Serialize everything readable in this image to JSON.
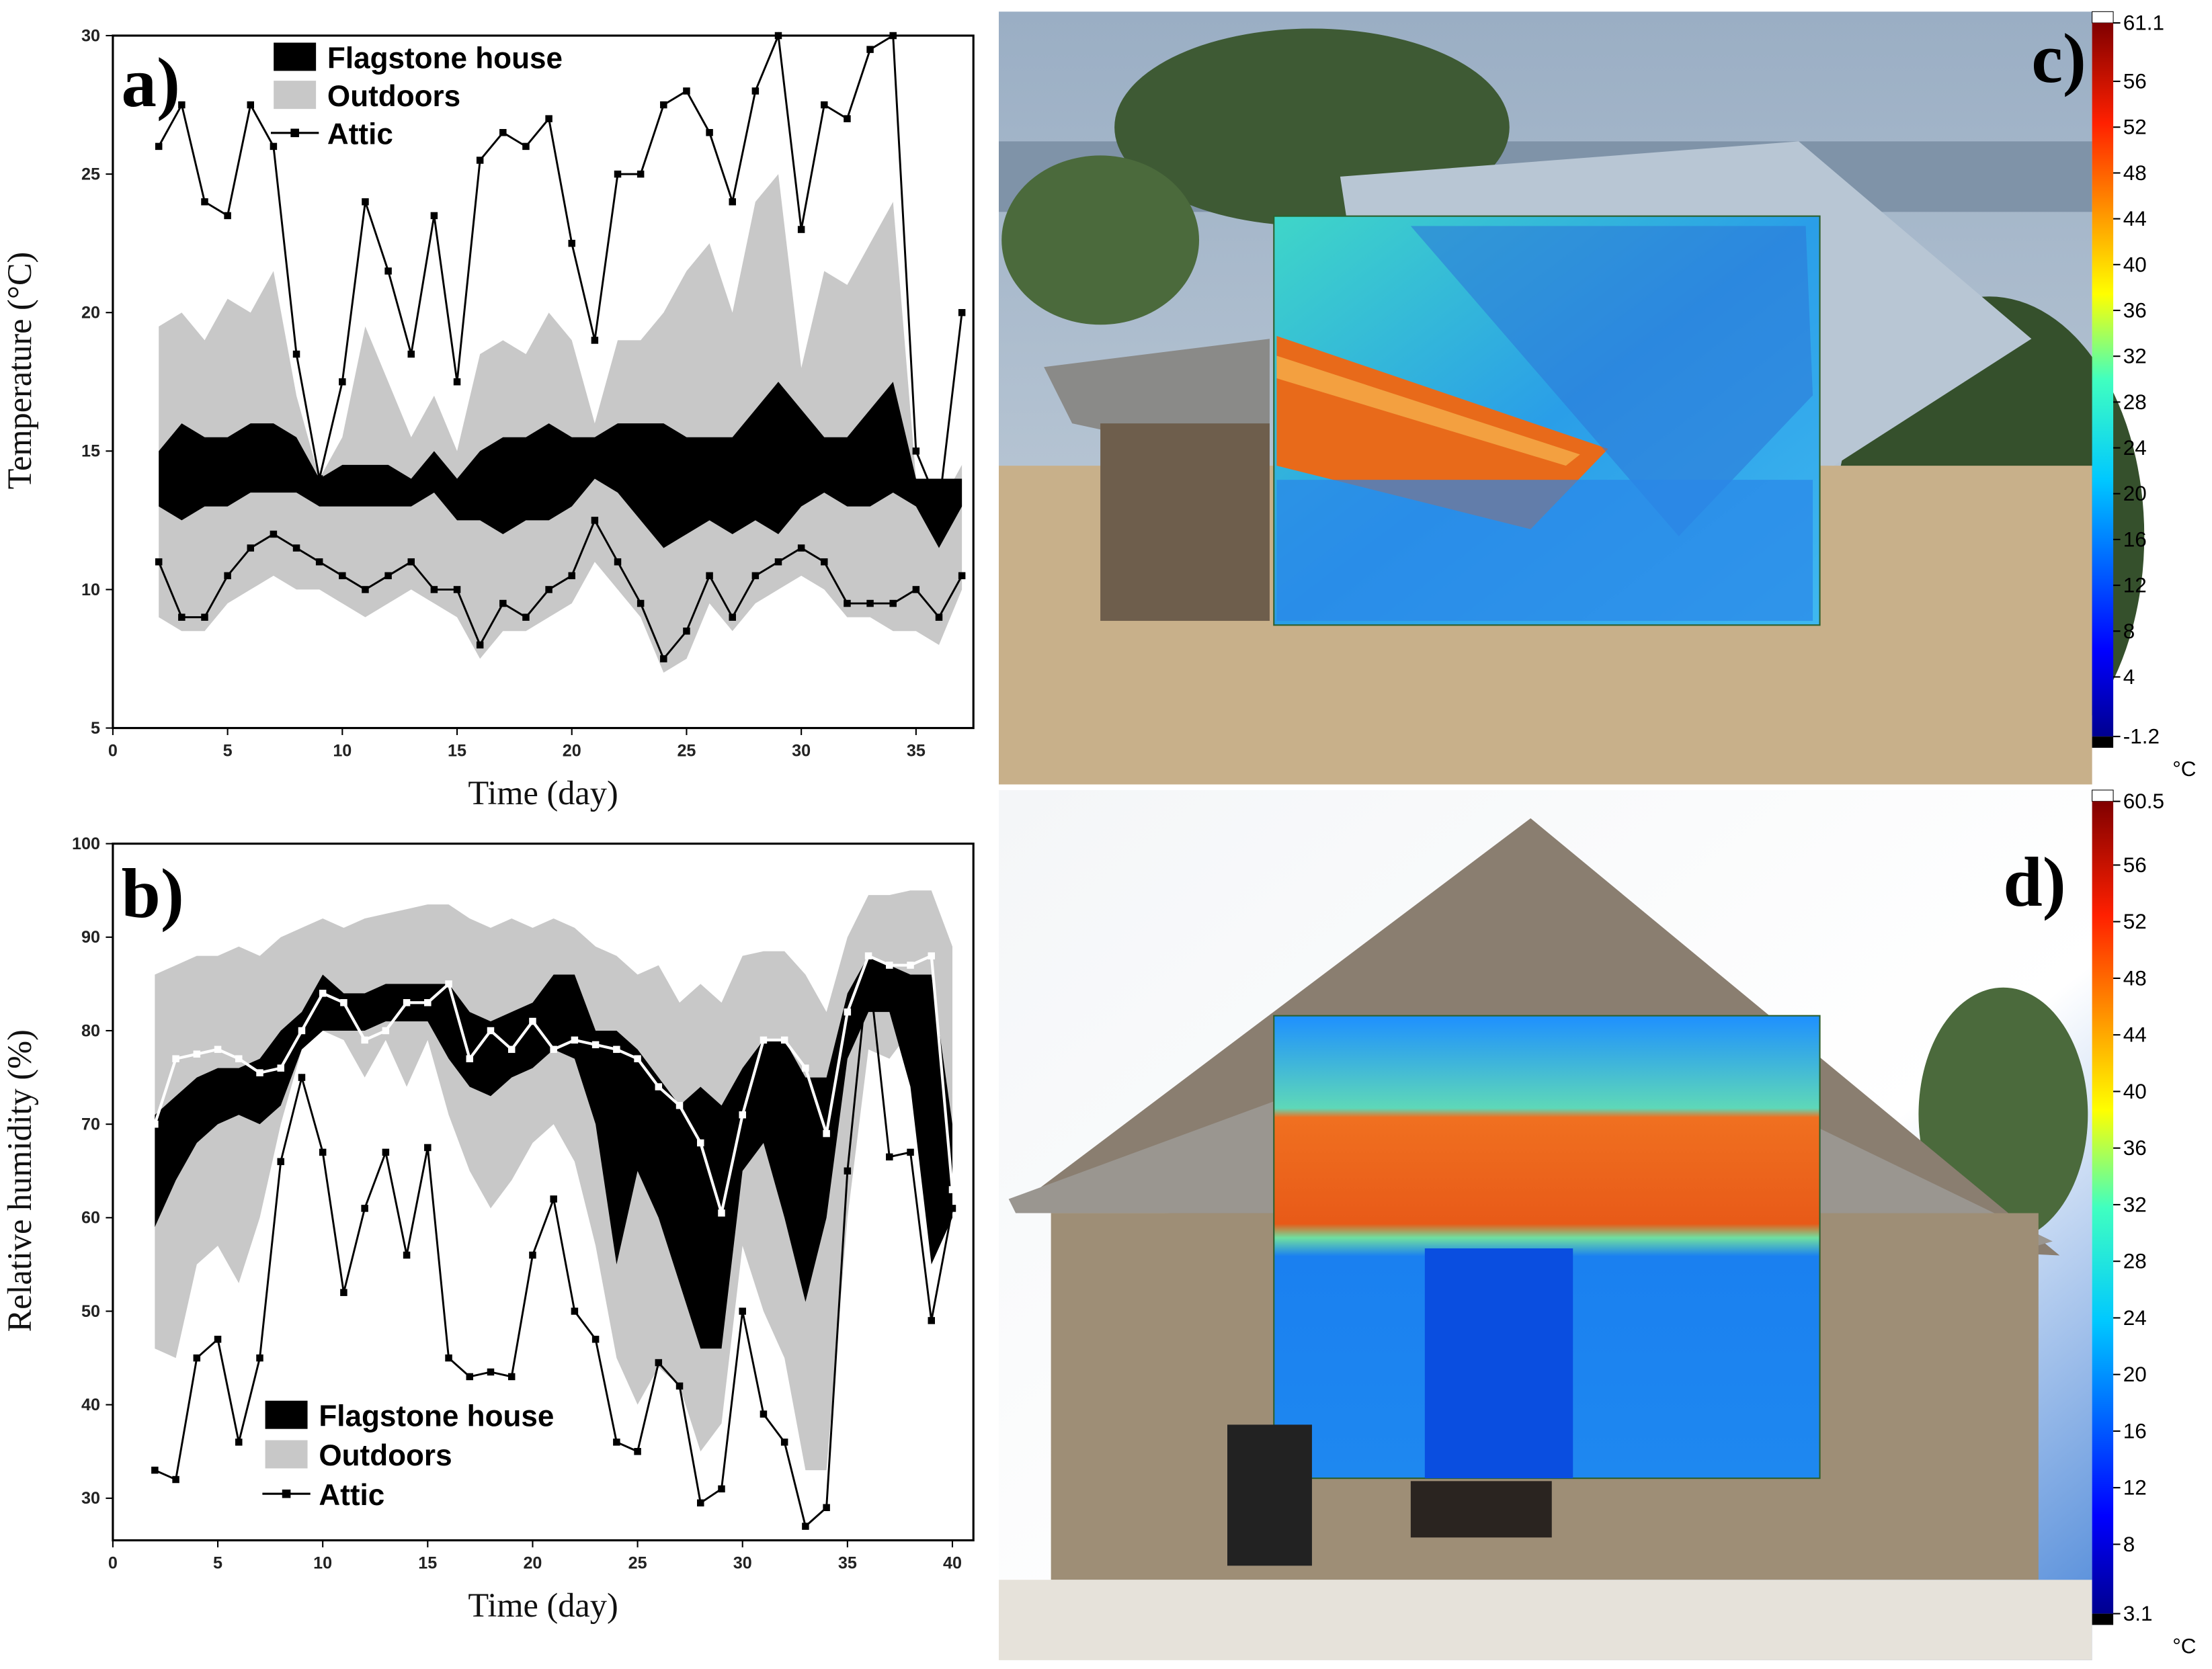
{
  "chart_data": [
    {
      "type": "band",
      "label": "a)",
      "x_label": "Time (day)",
      "y_label": "Temperature (°C)",
      "xlim": [
        0,
        37.5
      ],
      "ylim": [
        5,
        30
      ],
      "xticks": [
        0,
        5,
        10,
        15,
        20,
        25,
        30,
        35
      ],
      "yticks": [
        5,
        10,
        15,
        20,
        25,
        30
      ],
      "x": [
        2,
        3,
        4,
        5,
        6,
        7,
        8,
        9,
        10,
        11,
        12,
        13,
        14,
        15,
        16,
        17,
        18,
        19,
        20,
        21,
        22,
        23,
        24,
        25,
        26,
        27,
        28,
        29,
        30,
        31,
        32,
        33,
        34,
        35,
        36,
        37
      ],
      "series": [
        {
          "name": "Flagstone house",
          "kind": "band",
          "color": "#000000",
          "high": [
            15,
            16,
            15.5,
            15.5,
            16,
            16,
            15.5,
            14,
            14.5,
            14.5,
            14.5,
            14,
            15,
            14,
            15,
            15.5,
            15.5,
            16,
            15.5,
            15.5,
            16,
            16,
            16,
            15.5,
            15.5,
            15.5,
            16.5,
            17.5,
            16.5,
            15.5,
            15.5,
            16.5,
            17.5,
            14,
            14,
            14
          ],
          "low": [
            13,
            12.5,
            13,
            13,
            13.5,
            13.5,
            13.5,
            13,
            13,
            13,
            13,
            13,
            13.5,
            12.5,
            12.5,
            12,
            12.5,
            12.5,
            13,
            14,
            13.5,
            12.5,
            11.5,
            12,
            12.5,
            12,
            12.5,
            12,
            13,
            13.5,
            13,
            13,
            13.5,
            13,
            11.5,
            13
          ]
        },
        {
          "name": "Outdoors",
          "kind": "band",
          "color": "#c8c8c8",
          "high": [
            19.5,
            20,
            19,
            20.5,
            20,
            21.5,
            17,
            14,
            15.5,
            19.5,
            17.5,
            15.5,
            17,
            15,
            18.5,
            19,
            18.5,
            20,
            19,
            16,
            19,
            19,
            20,
            21.5,
            22.5,
            20,
            24,
            25,
            18,
            21.5,
            21,
            22.5,
            24,
            14,
            13,
            14.5
          ],
          "low": [
            9,
            8.5,
            8.5,
            9.5,
            10,
            10.5,
            10,
            10,
            9.5,
            9,
            9.5,
            10,
            9.5,
            9,
            7.5,
            8.5,
            8.5,
            9,
            9.5,
            11,
            10,
            9,
            7,
            7.5,
            9.5,
            8.5,
            9.5,
            10,
            10.5,
            10,
            9,
            9,
            8.5,
            8.5,
            8,
            10
          ]
        },
        {
          "name": "Attic",
          "kind": "line",
          "color": "#000000",
          "marker": "square",
          "high": [
            26,
            27.5,
            24,
            23.5,
            27.5,
            26,
            18.5,
            14,
            17.5,
            24,
            21.5,
            18.5,
            23.5,
            17.5,
            25.5,
            26.5,
            26,
            27,
            22.5,
            19,
            25,
            25,
            27.5,
            28,
            26.5,
            24,
            28,
            30,
            23,
            27.5,
            27,
            29.5,
            30,
            15,
            13,
            20
          ],
          "low": [
            11,
            9,
            9,
            10.5,
            11.5,
            12,
            11.5,
            11,
            10.5,
            10,
            10.5,
            11,
            10,
            10,
            8,
            9.5,
            9,
            10,
            10.5,
            12.5,
            11,
            9.5,
            7.5,
            8.5,
            10.5,
            9,
            10.5,
            11,
            11.5,
            11,
            9.5,
            9.5,
            9.5,
            10,
            9,
            10.5
          ]
        }
      ]
    },
    {
      "type": "band",
      "label": "b)",
      "x_label": "Time (day)",
      "y_label": "Relative humidity (%)",
      "xlim": [
        0,
        41
      ],
      "ylim": [
        25.5,
        100
      ],
      "xticks": [
        0,
        5,
        10,
        15,
        20,
        25,
        30,
        35,
        40
      ],
      "yticks": [
        30,
        40,
        50,
        60,
        70,
        80,
        90,
        100
      ],
      "x": [
        2,
        3,
        4,
        5,
        6,
        7,
        8,
        9,
        10,
        11,
        12,
        13,
        14,
        15,
        16,
        17,
        18,
        19,
        20,
        21,
        22,
        23,
        24,
        25,
        26,
        27,
        28,
        29,
        30,
        31,
        32,
        33,
        34,
        35,
        36,
        37,
        38,
        39,
        40
      ],
      "series": [
        {
          "name": "Flagstone house",
          "kind": "band",
          "color": "#000000",
          "high": [
            71,
            73,
            75,
            76,
            76,
            77,
            80,
            82,
            86,
            84,
            84,
            85,
            85,
            85,
            85,
            82,
            81,
            82,
            83,
            86,
            86,
            80,
            80,
            78,
            75,
            72,
            74,
            72,
            76,
            79,
            79,
            75,
            75,
            84,
            88,
            87,
            86,
            86,
            70
          ],
          "low": [
            59,
            64,
            68,
            70,
            71,
            70,
            72,
            78,
            80,
            80,
            80,
            81,
            81,
            81,
            77,
            74,
            73,
            75,
            76,
            78,
            77,
            70,
            55,
            65,
            60,
            53,
            46,
            46,
            65,
            68,
            60,
            51,
            60,
            77,
            82,
            82,
            74,
            55,
            60
          ]
        },
        {
          "name": "Outdoors",
          "kind": "band",
          "color": "#c8c8c8",
          "high": [
            86,
            87,
            88,
            88,
            89,
            88,
            90,
            91,
            92,
            91,
            92,
            92.5,
            93,
            93.5,
            93.5,
            92,
            91,
            92,
            91,
            92,
            91,
            89,
            88,
            86,
            87,
            83,
            85,
            83,
            88,
            88.5,
            88.5,
            86,
            82,
            90,
            94.5,
            94.5,
            95,
            95,
            89
          ],
          "low": [
            46,
            45,
            55,
            57,
            53,
            60,
            70,
            78,
            80,
            79,
            75,
            79,
            74,
            79,
            71,
            65,
            61,
            64,
            68,
            70,
            66,
            57,
            45,
            40,
            44,
            42,
            35,
            38,
            57,
            50,
            45,
            33,
            33,
            60,
            78,
            77,
            80,
            75,
            70
          ]
        },
        {
          "name": "Attic",
          "kind": "line",
          "color": "#000000",
          "marker": "square",
          "values": [
            33,
            32,
            45,
            47,
            36,
            45,
            66,
            75,
            67,
            52,
            61,
            67,
            56,
            67.5,
            45,
            43,
            43.5,
            43,
            56,
            62,
            50,
            47,
            36,
            35,
            44.5,
            42,
            29.5,
            31,
            50,
            39,
            36,
            27,
            29,
            65,
            87,
            66.5,
            67,
            49,
            61
          ]
        },
        {
          "kind": "line",
          "color": "#ffffff",
          "marker": "square",
          "values": [
            70,
            77,
            77.5,
            78,
            77,
            75.5,
            76,
            80,
            84,
            83,
            79,
            80,
            83,
            83,
            85,
            77,
            80,
            78,
            81,
            78,
            79,
            78.5,
            78,
            77,
            74,
            72,
            68,
            60.5,
            71,
            79,
            79,
            76,
            69,
            82,
            88,
            87,
            87,
            88,
            63
          ]
        }
      ]
    }
  ],
  "panels": [
    {
      "label": "c)",
      "colorbar": {
        "lim": [
          -1.2,
          61.1
        ],
        "ticks": [
          61.1,
          56,
          52,
          48,
          44,
          40,
          36,
          32,
          28,
          24,
          20,
          16,
          12,
          8,
          4,
          -1.2
        ],
        "unit": "°C"
      }
    },
    {
      "label": "d)",
      "colorbar": {
        "lim": [
          3.1,
          60.5
        ],
        "ticks": [
          60.5,
          56,
          52,
          48,
          44,
          40,
          36,
          32,
          28,
          24,
          20,
          16,
          12,
          8,
          3.1
        ],
        "unit": "°C"
      }
    }
  ]
}
